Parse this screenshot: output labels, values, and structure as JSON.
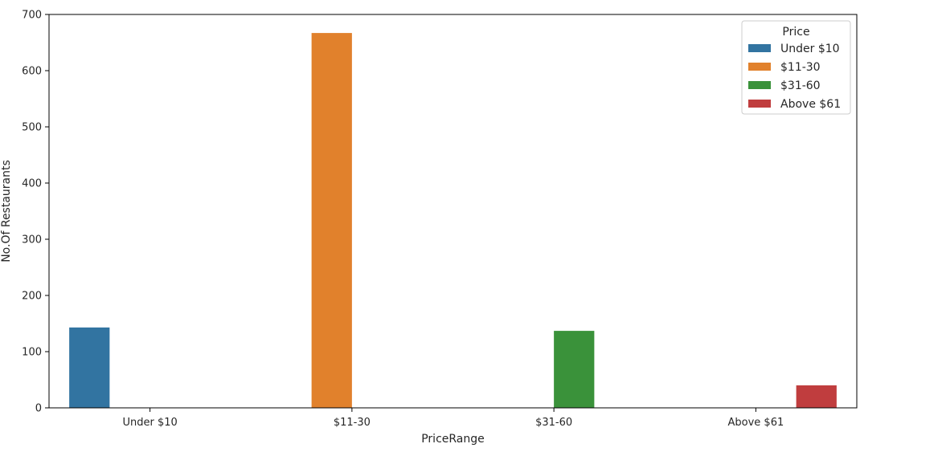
{
  "chart_data": {
    "type": "bar",
    "title": "",
    "xlabel": "PriceRange",
    "ylabel": "No.Of Restaurants",
    "categories": [
      "Under $10",
      "$11-30",
      "$31-60",
      "Above $61"
    ],
    "ylim": [
      0,
      700
    ],
    "yticks": [
      0,
      100,
      200,
      300,
      400,
      500,
      600,
      700
    ],
    "grid": false,
    "legend": {
      "title": "Price",
      "placement": "top-right",
      "entries": [
        "Under $10",
        "$11-30",
        "$31-60",
        "Above $61"
      ]
    },
    "series": [
      {
        "name": "Under $10",
        "color": "#3274a1",
        "values": [
          143,
          0,
          0,
          0
        ]
      },
      {
        "name": "$11-30",
        "color": "#e1812c",
        "values": [
          0,
          667,
          0,
          0
        ]
      },
      {
        "name": "$31-60",
        "color": "#3a923a",
        "values": [
          0,
          0,
          137,
          0
        ]
      },
      {
        "name": "Above $61",
        "color": "#c03d3e",
        "values": [
          0,
          0,
          0,
          40
        ]
      }
    ]
  }
}
